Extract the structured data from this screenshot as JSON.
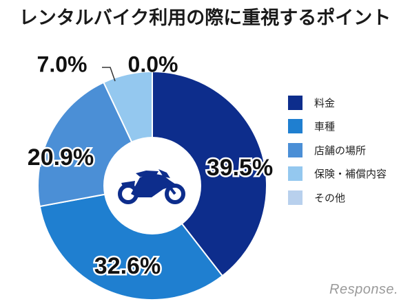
{
  "chart_data": {
    "type": "pie",
    "title": "レンタルバイク利用の際に重視するポイント",
    "slices": [
      {
        "label": "料金",
        "value": 39.5,
        "value_label": "39.5%",
        "color": "#0d2d8c"
      },
      {
        "label": "車種",
        "value": 32.6,
        "value_label": "32.6%",
        "color": "#1f7fd0"
      },
      {
        "label": "店舗の場所",
        "value": 20.9,
        "value_label": "20.9%",
        "color": "#4b8fd6"
      },
      {
        "label": "保険・補償内容",
        "value": 7.0,
        "value_label": "7.0%",
        "color": "#94c8ef"
      },
      {
        "label": "その他",
        "value": 0.0,
        "value_label": "0.0%",
        "color": "#b8d0ed"
      }
    ],
    "legend_position": "right",
    "center_icon": "motorcycle-icon"
  },
  "watermark": "Response."
}
